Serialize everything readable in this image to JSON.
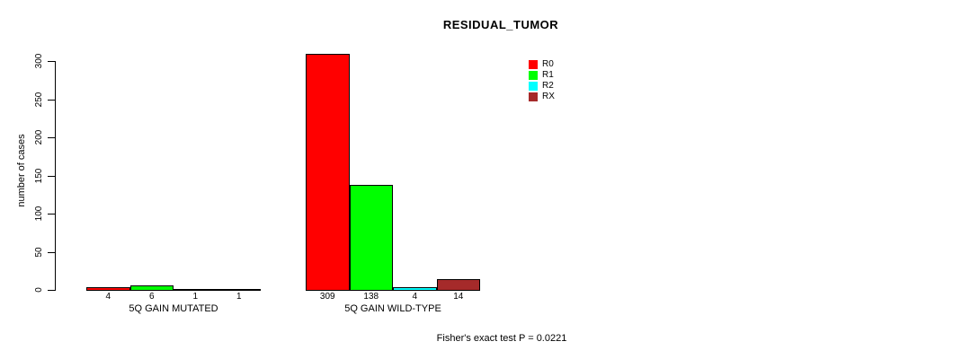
{
  "title": "RESIDUAL_TUMOR",
  "footer": "Fisher's exact test P = 0.0221",
  "y_axis": {
    "label": "number of cases",
    "ticks": [
      0,
      50,
      100,
      150,
      200,
      250,
      300
    ]
  },
  "legend": {
    "position": "top-right-inside",
    "items": [
      {
        "label": "R0",
        "color": "#FF0000"
      },
      {
        "label": "R1",
        "color": "#00FF00"
      },
      {
        "label": "R2",
        "color": "#00FFFF"
      },
      {
        "label": "RX",
        "color": "#A52A2A"
      }
    ]
  },
  "chart_data": {
    "type": "bar",
    "title": "RESIDUAL_TUMOR",
    "xlabel": "",
    "ylabel": "number of cases",
    "ylim": [
      0,
      300
    ],
    "grid": false,
    "legend_position": "top-right-inside",
    "series_names": [
      "R0",
      "R1",
      "R2",
      "RX"
    ],
    "series_colors": [
      "#FF0000",
      "#00FF00",
      "#00FFFF",
      "#A52A2A"
    ],
    "groups": [
      {
        "label": "5Q GAIN MUTATED",
        "values": [
          4,
          6,
          1,
          1
        ]
      },
      {
        "label": "5Q GAIN WILD-TYPE",
        "values": [
          309,
          138,
          4,
          14
        ]
      }
    ],
    "annotation": "Fisher's exact test P = 0.0221"
  }
}
